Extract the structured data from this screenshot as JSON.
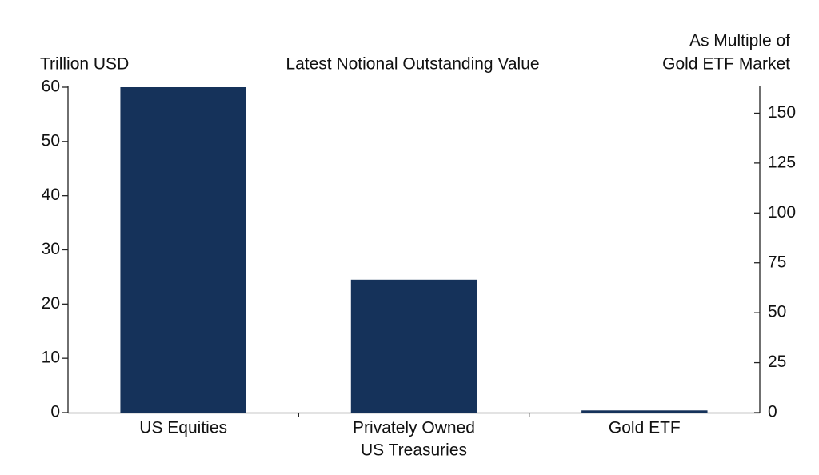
{
  "chart_data": {
    "type": "bar",
    "title": "Latest Notional Outstanding Value",
    "y_label": "Trillion USD",
    "y2_label": [
      "As Multiple of",
      "Gold ETF Market"
    ],
    "categories": [
      [
        "US Equities"
      ],
      [
        "Privately Owned",
        "US Treasuries"
      ],
      [
        "Gold ETF"
      ]
    ],
    "values": [
      60,
      24.5,
      0.4
    ],
    "color": "#15325a",
    "ylim": [
      0,
      60
    ],
    "yticks": [
      0,
      10,
      20,
      30,
      40,
      50,
      60
    ],
    "y2lim": [
      0,
      163
    ],
    "y2ticks": [
      0,
      25,
      50,
      75,
      100,
      125,
      150
    ],
    "grid": false
  }
}
